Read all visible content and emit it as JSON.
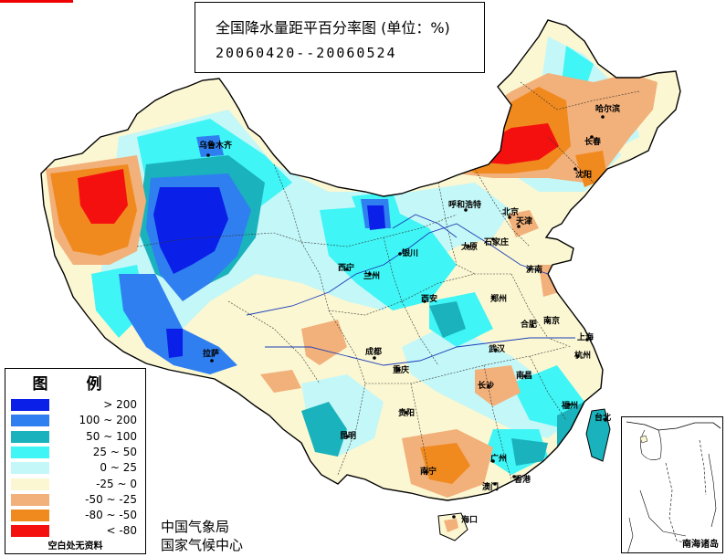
{
  "title": {
    "line1": "全国降水量距平百分率图 (单位：%)",
    "line2": "20060420--20060524"
  },
  "legend": {
    "title": "图 例",
    "items": [
      {
        "label": "> 200",
        "color": "#0a1fe8"
      },
      {
        "label": "100 ~ 200",
        "color": "#2f7ff0"
      },
      {
        "label": "50 ~ 100",
        "color": "#1ab2bc"
      },
      {
        "label": "25 ~ 50",
        "color": "#3ff5f5"
      },
      {
        "label": "0 ~ 25",
        "color": "#c4f7f7"
      },
      {
        "label": "-25 ~ 0",
        "color": "#fbf7d2"
      },
      {
        "label": "-50 ~ -25",
        "color": "#f2b07a"
      },
      {
        "label": "-80 ~ -50",
        "color": "#f08a1e"
      },
      {
        "label": "< -80",
        "color": "#f51010"
      }
    ],
    "note": "空白处无资料"
  },
  "organizations": {
    "line1": "中国气象局",
    "line2": "国家气候中心"
  },
  "inset": {
    "label": "南海诸岛"
  },
  "cities": [
    {
      "name": "乌鲁木齐"
    },
    {
      "name": "哈尔滨"
    },
    {
      "name": "长春"
    },
    {
      "name": "沈阳"
    },
    {
      "name": "呼和浩特"
    },
    {
      "name": "北京"
    },
    {
      "name": "天津"
    },
    {
      "name": "银川"
    },
    {
      "name": "太原"
    },
    {
      "name": "石家庄"
    },
    {
      "name": "西宁"
    },
    {
      "name": "兰州"
    },
    {
      "name": "济南"
    },
    {
      "name": "西安"
    },
    {
      "name": "郑州"
    },
    {
      "name": "合肥"
    },
    {
      "name": "南京"
    },
    {
      "name": "上海"
    },
    {
      "name": "拉萨"
    },
    {
      "name": "成都"
    },
    {
      "name": "武汉"
    },
    {
      "name": "杭州"
    },
    {
      "name": "重庆"
    },
    {
      "name": "南昌"
    },
    {
      "name": "长沙"
    },
    {
      "name": "福州"
    },
    {
      "name": "贵阳"
    },
    {
      "name": "台北"
    },
    {
      "name": "昆明"
    },
    {
      "name": "广州"
    },
    {
      "name": "香港"
    },
    {
      "name": "南宁"
    },
    {
      "name": "澳门"
    },
    {
      "name": "海口"
    }
  ]
}
